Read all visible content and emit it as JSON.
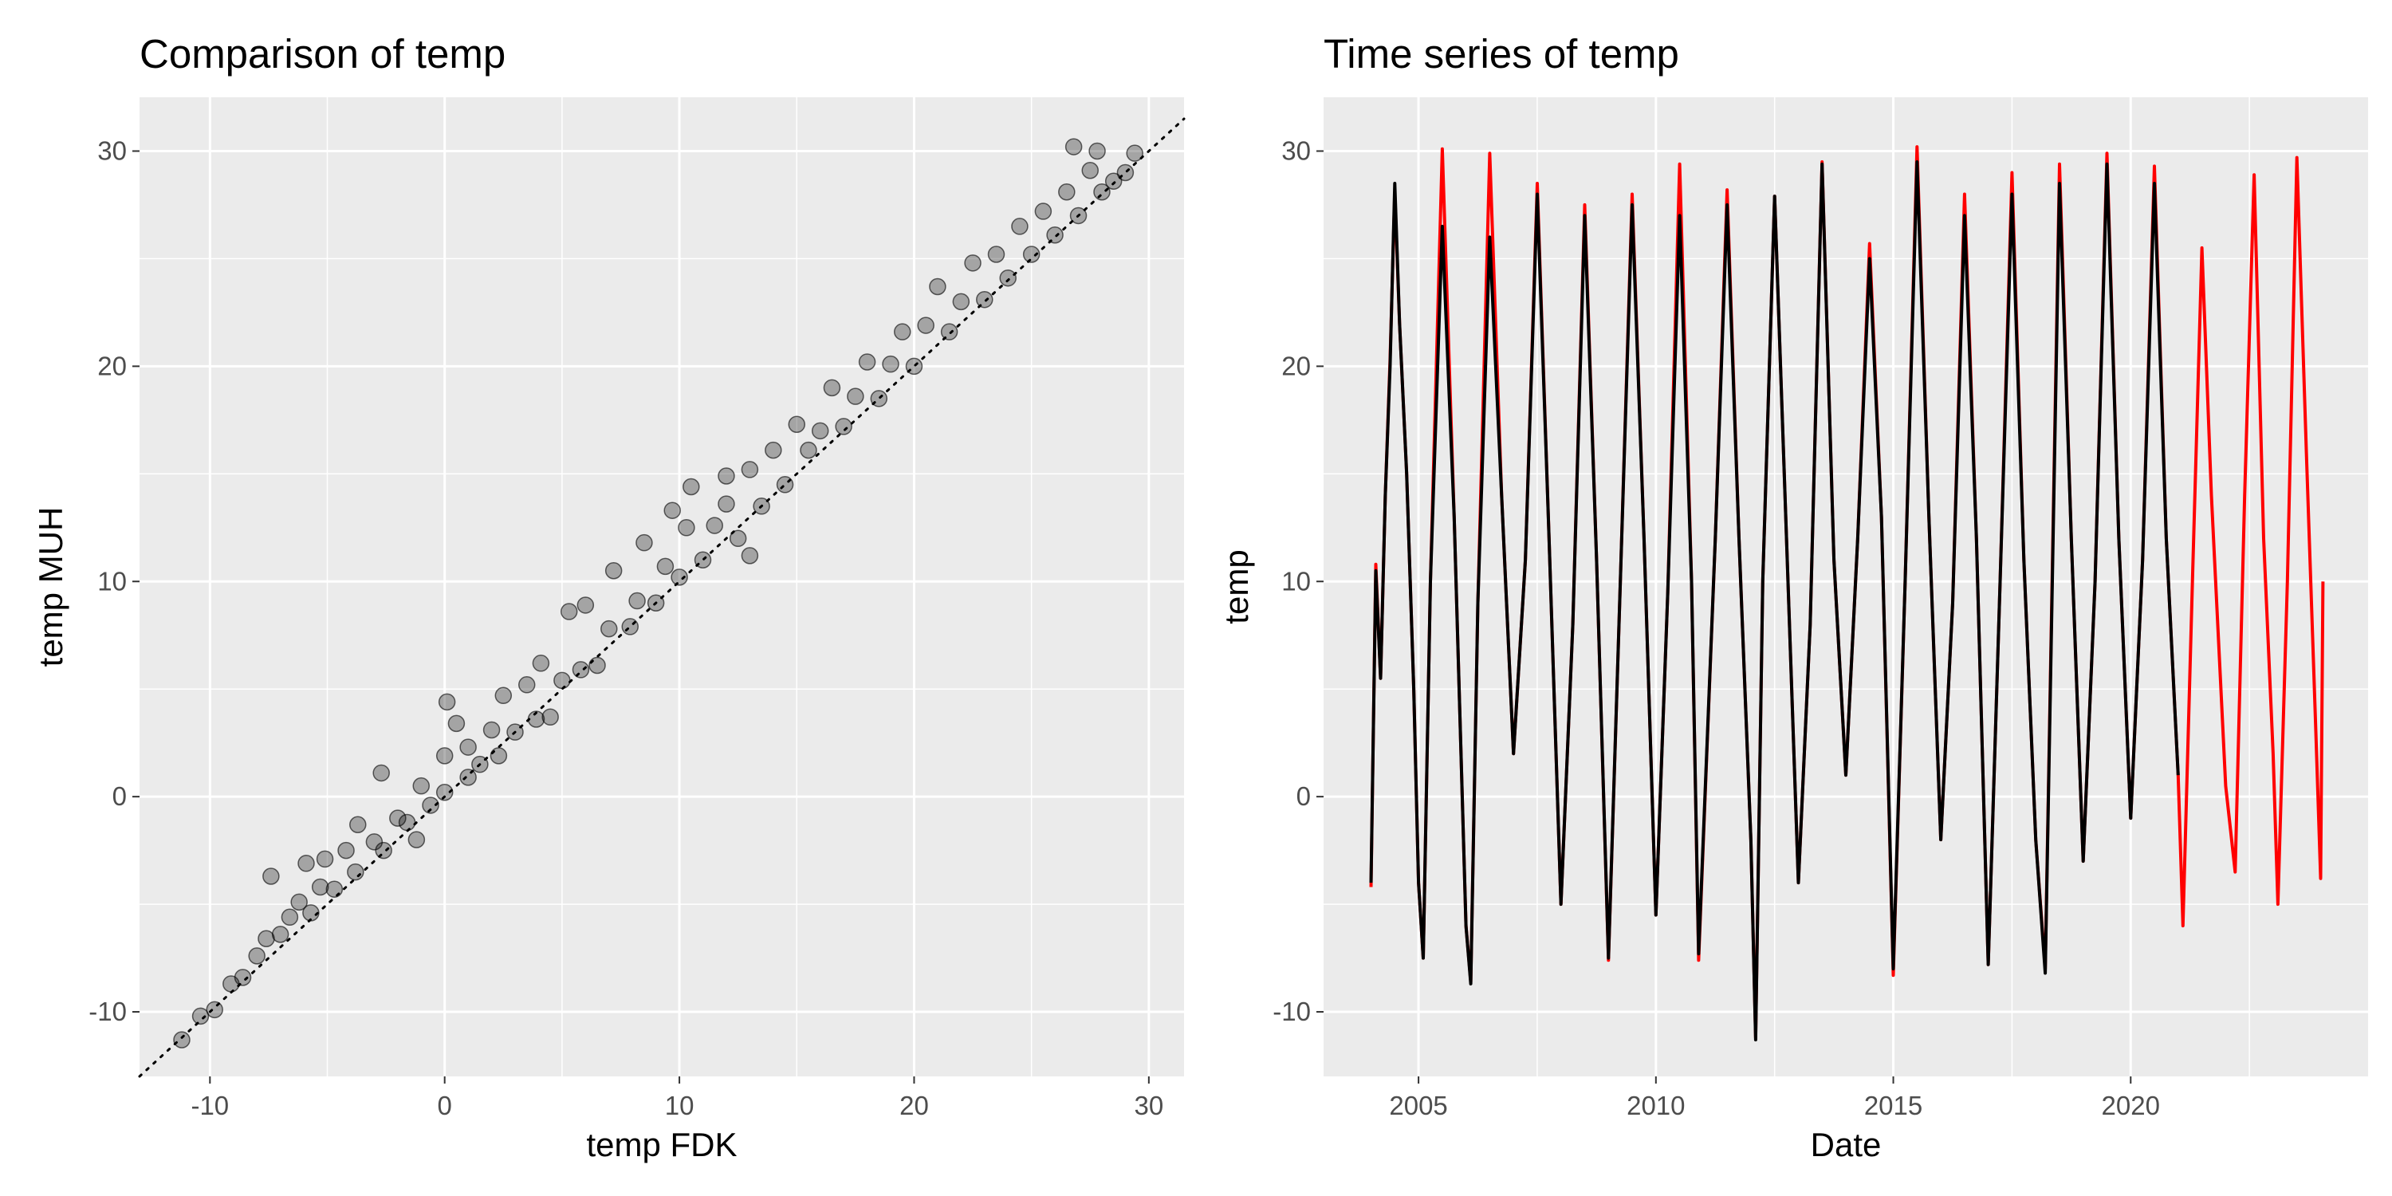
{
  "chart_data": [
    {
      "type": "scatter",
      "title": "Comparison of temp",
      "xlabel": "temp FDK",
      "ylabel": "temp MUH",
      "xlim": [
        -13,
        31.5
      ],
      "ylim": [
        -13,
        32.5
      ],
      "x_ticks": [
        -10,
        0,
        10,
        20,
        30
      ],
      "y_ticks": [
        -10,
        0,
        10,
        20,
        30
      ],
      "reference_line": {
        "type": "identity",
        "style": "dotted",
        "color": "#000000"
      },
      "point_color": "#000000",
      "point_alpha": 0.3,
      "grid": true,
      "points": [
        [
          -11.2,
          -11.3
        ],
        [
          -10.4,
          -10.2
        ],
        [
          -9.8,
          -9.9
        ],
        [
          -9.1,
          -8.7
        ],
        [
          -8.6,
          -8.4
        ],
        [
          -8.0,
          -7.4
        ],
        [
          -7.6,
          -6.6
        ],
        [
          -7.4,
          -3.7
        ],
        [
          -7.0,
          -6.4
        ],
        [
          -6.6,
          -5.6
        ],
        [
          -6.2,
          -4.9
        ],
        [
          -5.9,
          -3.1
        ],
        [
          -5.7,
          -5.4
        ],
        [
          -5.3,
          -4.2
        ],
        [
          -5.1,
          -2.9
        ],
        [
          -4.7,
          -4.3
        ],
        [
          -4.2,
          -2.5
        ],
        [
          -3.8,
          -3.5
        ],
        [
          -3.7,
          -1.3
        ],
        [
          -3.0,
          -2.1
        ],
        [
          -2.7,
          1.1
        ],
        [
          -2.6,
          -2.5
        ],
        [
          -2.0,
          -1.0
        ],
        [
          -1.6,
          -1.2
        ],
        [
          -1.2,
          -2.0
        ],
        [
          -1.0,
          0.5
        ],
        [
          -0.6,
          -0.4
        ],
        [
          0.0,
          1.9
        ],
        [
          0.0,
          0.2
        ],
        [
          0.1,
          4.4
        ],
        [
          0.5,
          3.4
        ],
        [
          1.0,
          2.3
        ],
        [
          1.0,
          0.9
        ],
        [
          1.5,
          1.5
        ],
        [
          2.0,
          3.1
        ],
        [
          2.3,
          1.9
        ],
        [
          2.5,
          4.7
        ],
        [
          3.0,
          3.0
        ],
        [
          3.5,
          5.2
        ],
        [
          3.9,
          3.6
        ],
        [
          4.1,
          6.2
        ],
        [
          4.5,
          3.7
        ],
        [
          5.0,
          5.4
        ],
        [
          5.3,
          8.6
        ],
        [
          5.8,
          5.9
        ],
        [
          6.0,
          8.9
        ],
        [
          6.5,
          6.1
        ],
        [
          7.0,
          7.8
        ],
        [
          7.2,
          10.5
        ],
        [
          7.9,
          7.9
        ],
        [
          8.2,
          9.1
        ],
        [
          8.5,
          11.8
        ],
        [
          9.0,
          9.0
        ],
        [
          9.4,
          10.7
        ],
        [
          9.7,
          13.3
        ],
        [
          10.0,
          10.2
        ],
        [
          10.3,
          12.5
        ],
        [
          10.5,
          14.4
        ],
        [
          11.0,
          11.0
        ],
        [
          11.5,
          12.6
        ],
        [
          12.0,
          13.6
        ],
        [
          12.0,
          14.9
        ],
        [
          12.5,
          12.0
        ],
        [
          13.0,
          15.2
        ],
        [
          13.5,
          13.5
        ],
        [
          13.0,
          11.2
        ],
        [
          14.0,
          16.1
        ],
        [
          14.5,
          14.5
        ],
        [
          15.0,
          17.3
        ],
        [
          15.5,
          16.1
        ],
        [
          16.0,
          17.0
        ],
        [
          16.5,
          19.0
        ],
        [
          17.0,
          17.2
        ],
        [
          17.5,
          18.6
        ],
        [
          18.0,
          20.2
        ],
        [
          18.5,
          18.5
        ],
        [
          19.0,
          20.1
        ],
        [
          19.5,
          21.6
        ],
        [
          20.0,
          20.0
        ],
        [
          20.5,
          21.9
        ],
        [
          21.0,
          23.7
        ],
        [
          21.5,
          21.6
        ],
        [
          22.0,
          23.0
        ],
        [
          22.5,
          24.8
        ],
        [
          23.0,
          23.1
        ],
        [
          23.5,
          25.2
        ],
        [
          24.0,
          24.1
        ],
        [
          24.5,
          26.5
        ],
        [
          25.0,
          25.2
        ],
        [
          25.5,
          27.2
        ],
        [
          26.0,
          26.1
        ],
        [
          26.5,
          28.1
        ],
        [
          26.8,
          30.2
        ],
        [
          27.0,
          27.0
        ],
        [
          27.5,
          29.1
        ],
        [
          27.8,
          30.0
        ],
        [
          28.0,
          28.1
        ],
        [
          28.5,
          28.6
        ],
        [
          29.0,
          29.0
        ],
        [
          29.4,
          29.9
        ]
      ]
    },
    {
      "type": "line",
      "title": "Time series of temp",
      "xlabel": "Date",
      "ylabel": "temp",
      "xlim": [
        2003.0,
        2025.0
      ],
      "ylim": [
        -13,
        32.5
      ],
      "x_ticks": [
        2005,
        2010,
        2015,
        2020
      ],
      "y_ticks": [
        -10,
        0,
        10,
        20,
        30
      ],
      "grid": true,
      "series": [
        {
          "color": "#ff0000",
          "points": [
            [
              2004.0,
              -4.2
            ],
            [
              2004.1,
              10.8
            ],
            [
              2004.2,
              5.5
            ],
            [
              2004.3,
              14.0
            ],
            [
              2004.4,
              20.3
            ],
            [
              2004.5,
              28.1
            ],
            [
              2004.6,
              22.0
            ],
            [
              2004.75,
              15.0
            ],
            [
              2004.9,
              5.0
            ],
            [
              2005.0,
              -4.0
            ],
            [
              2005.1,
              -7.5
            ],
            [
              2005.25,
              10.0
            ],
            [
              2005.5,
              30.1
            ],
            [
              2005.75,
              13.0
            ],
            [
              2006.0,
              -6.0
            ],
            [
              2006.1,
              -8.6
            ],
            [
              2006.25,
              9.0
            ],
            [
              2006.5,
              29.9
            ],
            [
              2006.75,
              14.0
            ],
            [
              2007.0,
              2.0
            ],
            [
              2007.25,
              11.0
            ],
            [
              2007.5,
              28.5
            ],
            [
              2007.75,
              12.0
            ],
            [
              2008.0,
              -5.0
            ],
            [
              2008.25,
              8.0
            ],
            [
              2008.5,
              27.5
            ],
            [
              2008.75,
              11.0
            ],
            [
              2009.0,
              -7.6
            ],
            [
              2009.25,
              10.0
            ],
            [
              2009.5,
              28.0
            ],
            [
              2009.75,
              12.0
            ],
            [
              2010.0,
              -5.5
            ],
            [
              2010.25,
              9.5
            ],
            [
              2010.5,
              29.4
            ],
            [
              2010.75,
              10.0
            ],
            [
              2010.9,
              -7.6
            ],
            [
              2011.25,
              12.0
            ],
            [
              2011.5,
              28.2
            ],
            [
              2011.75,
              12.0
            ],
            [
              2012.0,
              -2.0
            ],
            [
              2012.1,
              -11.2
            ],
            [
              2012.25,
              10.0
            ],
            [
              2012.5,
              27.9
            ],
            [
              2012.75,
              12.0
            ],
            [
              2013.0,
              -4.0
            ],
            [
              2013.25,
              8.0
            ],
            [
              2013.5,
              29.5
            ],
            [
              2013.75,
              11.0
            ],
            [
              2014.0,
              1.0
            ],
            [
              2014.25,
              12.0
            ],
            [
              2014.5,
              25.7
            ],
            [
              2014.75,
              13.0
            ],
            [
              2015.0,
              -8.3
            ],
            [
              2015.25,
              10.0
            ],
            [
              2015.5,
              30.2
            ],
            [
              2015.75,
              13.0
            ],
            [
              2016.0,
              -2.0
            ],
            [
              2016.25,
              9.0
            ],
            [
              2016.5,
              28.0
            ],
            [
              2016.75,
              12.0
            ],
            [
              2017.0,
              -7.8
            ],
            [
              2017.25,
              10.0
            ],
            [
              2017.5,
              29.0
            ],
            [
              2017.75,
              11.0
            ],
            [
              2018.0,
              -2.0
            ],
            [
              2018.2,
              -8.0
            ],
            [
              2018.5,
              29.4
            ],
            [
              2018.75,
              12.0
            ],
            [
              2019.0,
              -3.0
            ],
            [
              2019.25,
              10.0
            ],
            [
              2019.5,
              29.9
            ],
            [
              2019.75,
              12.0
            ],
            [
              2020.0,
              -1.0
            ],
            [
              2020.25,
              11.0
            ],
            [
              2020.5,
              29.3
            ],
            [
              2020.75,
              12.0
            ],
            [
              2021.0,
              1.0
            ],
            [
              2021.1,
              -6.0
            ],
            [
              2021.3,
              10.0
            ],
            [
              2021.5,
              25.5
            ],
            [
              2021.7,
              14.0
            ],
            [
              2022.0,
              0.5
            ],
            [
              2022.2,
              -3.5
            ],
            [
              2022.4,
              14.0
            ],
            [
              2022.6,
              28.9
            ],
            [
              2022.8,
              12.0
            ],
            [
              2023.0,
              2.0
            ],
            [
              2023.1,
              -5.0
            ],
            [
              2023.3,
              10.0
            ],
            [
              2023.5,
              29.7
            ],
            [
              2023.7,
              16.0
            ],
            [
              2023.9,
              3.0
            ],
            [
              2024.0,
              -3.8
            ],
            [
              2024.05,
              10.0
            ]
          ]
        },
        {
          "color": "#000000",
          "points": [
            [
              2004.0,
              -4.0
            ],
            [
              2004.1,
              10.5
            ],
            [
              2004.2,
              5.5
            ],
            [
              2004.3,
              14.0
            ],
            [
              2004.4,
              20.0
            ],
            [
              2004.5,
              28.5
            ],
            [
              2004.6,
              22.0
            ],
            [
              2004.75,
              15.0
            ],
            [
              2004.9,
              5.0
            ],
            [
              2005.0,
              -4.0
            ],
            [
              2005.1,
              -7.5
            ],
            [
              2005.25,
              10.0
            ],
            [
              2005.5,
              26.5
            ],
            [
              2005.75,
              13.0
            ],
            [
              2006.0,
              -6.0
            ],
            [
              2006.1,
              -8.7
            ],
            [
              2006.25,
              9.0
            ],
            [
              2006.5,
              26.0
            ],
            [
              2006.75,
              14.0
            ],
            [
              2007.0,
              2.0
            ],
            [
              2007.25,
              11.0
            ],
            [
              2007.5,
              28.0
            ],
            [
              2007.75,
              12.0
            ],
            [
              2008.0,
              -5.0
            ],
            [
              2008.25,
              8.0
            ],
            [
              2008.5,
              27.0
            ],
            [
              2008.75,
              11.0
            ],
            [
              2009.0,
              -7.5
            ],
            [
              2009.25,
              10.0
            ],
            [
              2009.5,
              27.5
            ],
            [
              2009.75,
              12.0
            ],
            [
              2010.0,
              -5.5
            ],
            [
              2010.25,
              9.5
            ],
            [
              2010.5,
              27.0
            ],
            [
              2010.75,
              10.0
            ],
            [
              2010.9,
              -7.3
            ],
            [
              2011.25,
              12.0
            ],
            [
              2011.5,
              27.5
            ],
            [
              2011.75,
              12.0
            ],
            [
              2012.0,
              -2.0
            ],
            [
              2012.1,
              -11.3
            ],
            [
              2012.25,
              10.0
            ],
            [
              2012.5,
              27.9
            ],
            [
              2012.75,
              12.0
            ],
            [
              2013.0,
              -4.0
            ],
            [
              2013.25,
              8.0
            ],
            [
              2013.5,
              29.4
            ],
            [
              2013.75,
              11.0
            ],
            [
              2014.0,
              1.0
            ],
            [
              2014.25,
              12.0
            ],
            [
              2014.5,
              25.0
            ],
            [
              2014.75,
              13.0
            ],
            [
              2015.0,
              -8.0
            ],
            [
              2015.25,
              10.0
            ],
            [
              2015.5,
              29.5
            ],
            [
              2015.75,
              13.0
            ],
            [
              2016.0,
              -2.0
            ],
            [
              2016.25,
              9.0
            ],
            [
              2016.5,
              27.0
            ],
            [
              2016.75,
              12.0
            ],
            [
              2017.0,
              -7.8
            ],
            [
              2017.25,
              10.0
            ],
            [
              2017.5,
              28.0
            ],
            [
              2017.75,
              11.0
            ],
            [
              2018.0,
              -2.0
            ],
            [
              2018.2,
              -8.2
            ],
            [
              2018.5,
              28.5
            ],
            [
              2018.75,
              12.0
            ],
            [
              2019.0,
              -3.0
            ],
            [
              2019.25,
              10.0
            ],
            [
              2019.5,
              29.4
            ],
            [
              2019.75,
              12.0
            ],
            [
              2020.0,
              -1.0
            ],
            [
              2020.25,
              11.0
            ],
            [
              2020.5,
              28.5
            ],
            [
              2020.75,
              12.0
            ],
            [
              2021.0,
              1.0
            ]
          ]
        }
      ]
    }
  ]
}
